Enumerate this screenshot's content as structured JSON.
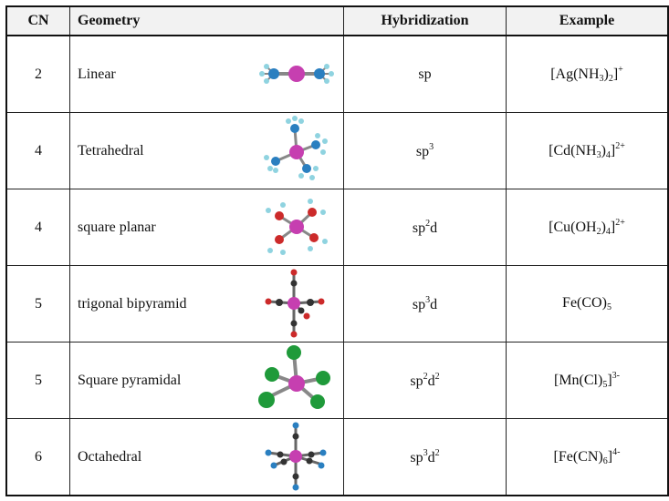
{
  "table": {
    "headers": {
      "cn": "CN",
      "geometry": "Geometry",
      "hybridization": "Hybridization",
      "example": "Example"
    },
    "rows": [
      {
        "cn": "2",
        "geometry": "Linear",
        "molecule_icon": "linear-molecule-icon",
        "hybridization": [
          [
            "sp",
            ""
          ]
        ],
        "example": [
          [
            "[Ag(NH",
            ""
          ],
          [
            "3",
            "sub"
          ],
          [
            ")",
            ""
          ],
          [
            "2",
            "sub"
          ],
          [
            "]",
            ""
          ],
          [
            "+",
            "sup"
          ]
        ]
      },
      {
        "cn": "4",
        "geometry": "Tetrahedral",
        "molecule_icon": "tetrahedral-molecule-icon",
        "hybridization": [
          [
            "sp",
            ""
          ],
          [
            "3",
            "sup"
          ]
        ],
        "example": [
          [
            "[Cd(NH",
            ""
          ],
          [
            "3",
            "sub"
          ],
          [
            ")",
            ""
          ],
          [
            "4",
            "sub"
          ],
          [
            "]",
            ""
          ],
          [
            "2+",
            "sup"
          ]
        ]
      },
      {
        "cn": "4",
        "geometry": "square planar",
        "molecule_icon": "square-planar-molecule-icon",
        "hybridization": [
          [
            "sp",
            ""
          ],
          [
            "2",
            "sup"
          ],
          [
            "d",
            ""
          ]
        ],
        "example": [
          [
            "[Cu(OH",
            ""
          ],
          [
            "2",
            "sub"
          ],
          [
            ")",
            ""
          ],
          [
            "4",
            "sub"
          ],
          [
            "]",
            ""
          ],
          [
            "2+",
            "sup"
          ]
        ]
      },
      {
        "cn": "5",
        "geometry": "trigonal bipyramid",
        "molecule_icon": "trigonal-bipyramid-molecule-icon",
        "hybridization": [
          [
            "sp",
            ""
          ],
          [
            "3",
            "sup"
          ],
          [
            "d",
            ""
          ]
        ],
        "example": [
          [
            "Fe(CO)",
            ""
          ],
          [
            "5",
            "sub"
          ]
        ]
      },
      {
        "cn": "5",
        "geometry": "Square pyramidal",
        "molecule_icon": "square-pyramidal-molecule-icon",
        "hybridization": [
          [
            "sp",
            ""
          ],
          [
            "2",
            "sup"
          ],
          [
            "d",
            ""
          ],
          [
            "2",
            "sup"
          ]
        ],
        "example": [
          [
            "[Mn(Cl)",
            ""
          ],
          [
            "5",
            "sub"
          ],
          [
            "]",
            ""
          ],
          [
            "3-",
            "sup"
          ]
        ]
      },
      {
        "cn": "6",
        "geometry": "Octahedral",
        "molecule_icon": "octahedral-molecule-icon",
        "hybridization": [
          [
            "sp",
            ""
          ],
          [
            "3",
            "sup"
          ],
          [
            "d",
            ""
          ],
          [
            "2",
            "sup"
          ]
        ],
        "example": [
          [
            "[Fe(CN)",
            ""
          ],
          [
            "6",
            "sub"
          ],
          [
            "]",
            ""
          ],
          [
            "4-",
            "sup"
          ]
        ]
      }
    ]
  },
  "colors": {
    "metal": "#c63fb0",
    "nitrogen": "#2a7fc0",
    "hydrogen": "#8fd3e0",
    "oxygen": "#cc2a2a",
    "carbon": "#333333",
    "chlorine": "#1f9a3a",
    "bond": "#888888"
  }
}
